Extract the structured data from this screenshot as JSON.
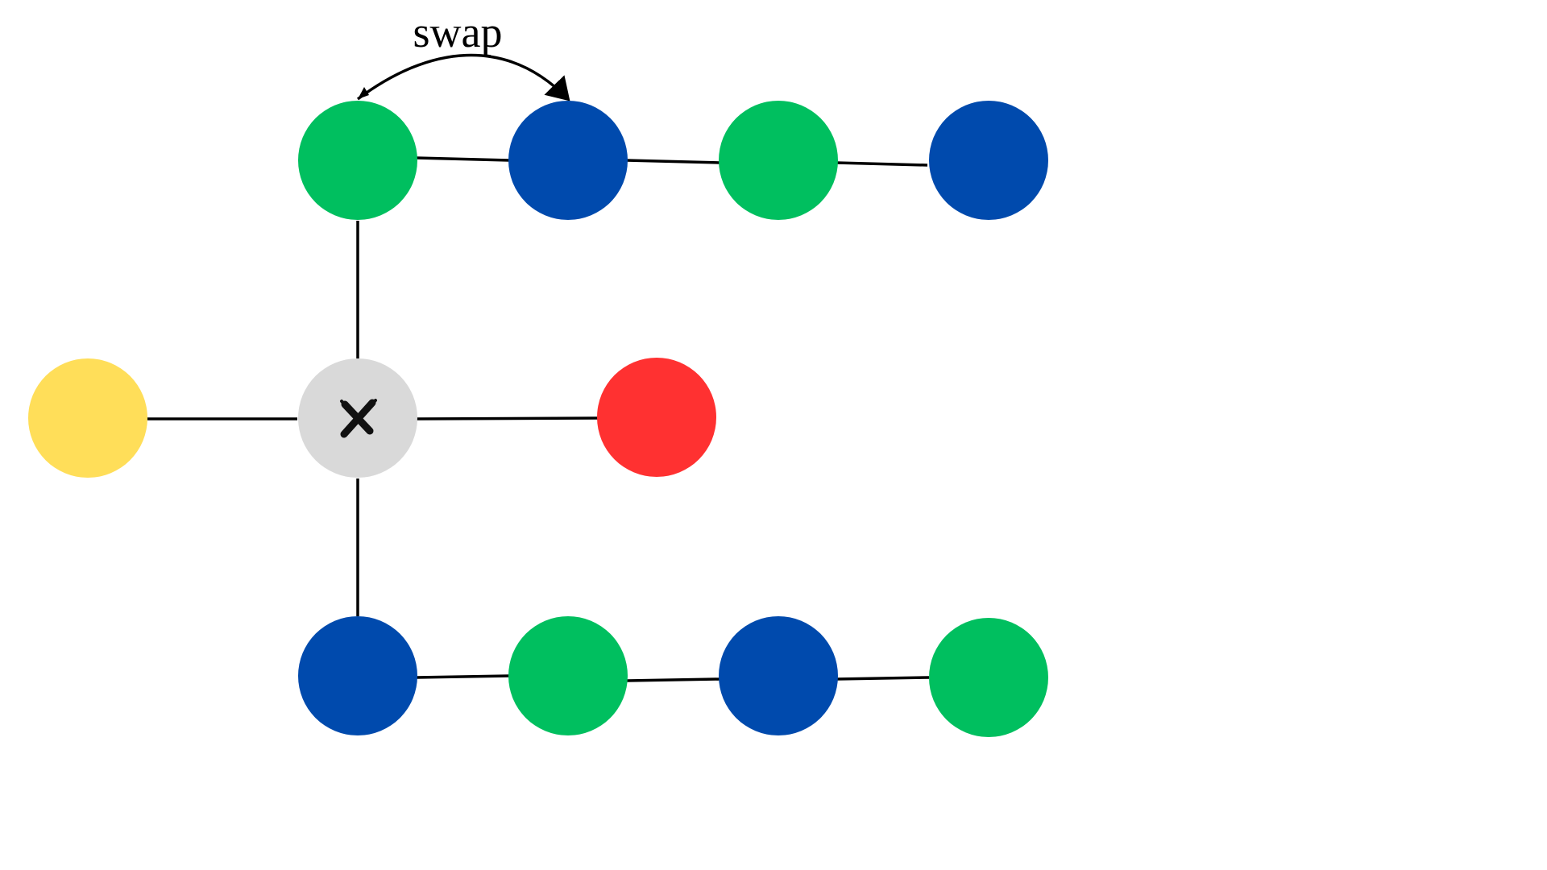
{
  "annotation": {
    "label": "swap"
  },
  "colors": {
    "green": "#00bf5f",
    "blue": "#004aad",
    "yellow": "#ffde59",
    "red": "#ff3131",
    "gray": "#d9d9d9",
    "edge": "#000000"
  },
  "nodes": [
    {
      "id": "g1",
      "color": "green"
    },
    {
      "id": "b1",
      "color": "blue"
    },
    {
      "id": "g2",
      "color": "green"
    },
    {
      "id": "b2",
      "color": "blue"
    },
    {
      "id": "center",
      "color": "gray",
      "icon": "cross-icon"
    },
    {
      "id": "y",
      "color": "yellow"
    },
    {
      "id": "r",
      "color": "red"
    },
    {
      "id": "b3",
      "color": "blue"
    },
    {
      "id": "g3",
      "color": "green"
    },
    {
      "id": "b4",
      "color": "blue"
    },
    {
      "id": "g4",
      "color": "green"
    }
  ]
}
